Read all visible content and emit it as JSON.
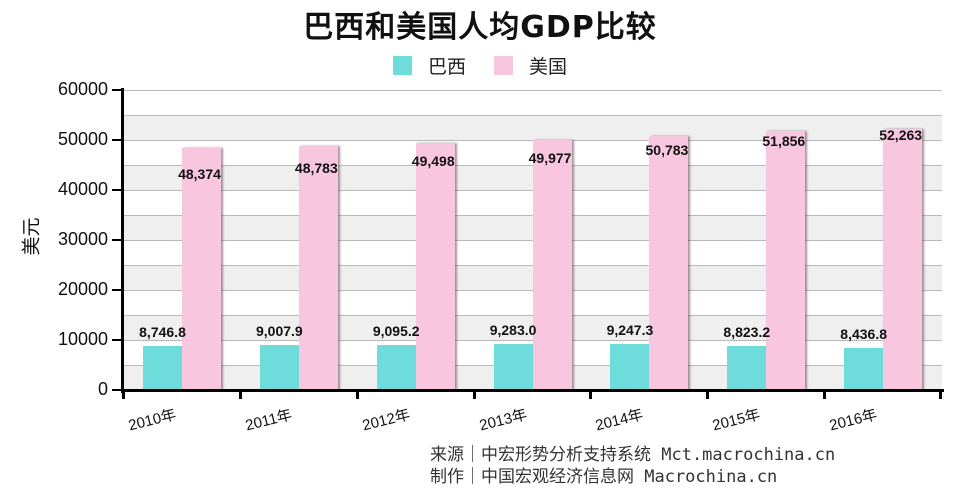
{
  "title": "巴西和美国人均GDP比较",
  "legend": [
    {
      "label": "巴西",
      "color": "#6fdcdc"
    },
    {
      "label": "美国",
      "color": "#f9c6e0"
    }
  ],
  "axis": {
    "ylabel": "美元",
    "yticks": [
      "0",
      "10000",
      "20000",
      "30000",
      "40000",
      "50000",
      "60000"
    ],
    "xticks": [
      "2010年",
      "2011年",
      "2012年",
      "2013年",
      "2014年",
      "2015年",
      "2016年"
    ]
  },
  "footer": {
    "line1": "来源｜中宏形势分析支持系统 Mct.macrochina.cn",
    "line2": "制作｜中国宏观经济信息网 Macrochina.cn"
  },
  "bar_labels": {
    "brazil": [
      "8,746.8",
      "9,007.9",
      "9,095.2",
      "9,283.0",
      "9,247.3",
      "8,823.2",
      "8,436.8"
    ],
    "us": [
      "48,374",
      "48,783",
      "49,498",
      "49,977",
      "50,783",
      "51,856",
      "52,263"
    ]
  },
  "chart_data": {
    "type": "bar",
    "title": "巴西和美国人均GDP比较",
    "xlabel": "",
    "ylabel": "美元",
    "ylim": [
      0,
      60000
    ],
    "yticks": [
      0,
      10000,
      20000,
      30000,
      40000,
      50000,
      60000
    ],
    "grid": true,
    "legend_position": "top",
    "categories": [
      "2010年",
      "2011年",
      "2012年",
      "2013年",
      "2014年",
      "2015年",
      "2016年"
    ],
    "series": [
      {
        "name": "巴西",
        "color": "#6fdcdc",
        "values": [
          8746.8,
          9007.9,
          9095.2,
          9283.0,
          9247.3,
          8823.2,
          8436.8
        ]
      },
      {
        "name": "美国",
        "color": "#f9c6e0",
        "values": [
          48374,
          48783,
          49498,
          49977,
          50783,
          51856,
          52263
        ]
      }
    ]
  }
}
